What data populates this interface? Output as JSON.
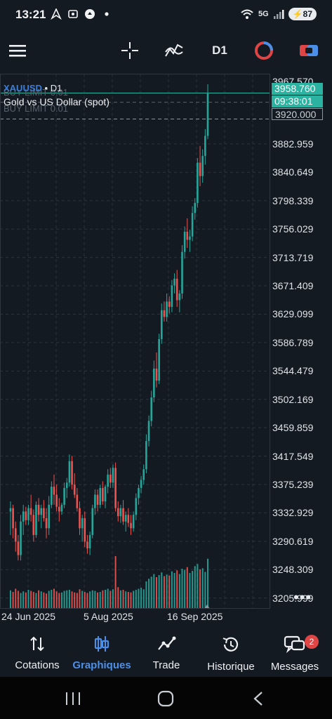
{
  "status_bar": {
    "time": "13:21",
    "network": "5G",
    "battery": "87",
    "left_icons": [
      "navigation-icon",
      "screenshot-icon",
      "app-circle-icon",
      "dot-icon"
    ]
  },
  "toolbar": {
    "menu_icon": "hamburger-icon",
    "crosshair_icon": "crosshair-icon",
    "indicators_icon": "indicators-icon",
    "timeframe": "D1",
    "colors": {
      "accent": "#4b8fe8",
      "brand_red": "#e04545"
    }
  },
  "chart": {
    "symbol": "XAUUSD",
    "symbol_sep": " • ",
    "timeframe": "D1",
    "instrument_name": "Gold vs US Dollar (spot)",
    "order_lines": [
      "BUY LIMIT 0.01",
      "BUY LIMIT 0.01"
    ],
    "bid_tag": "3958.760",
    "countdown_tag": "09:38:01",
    "limit_tag": "3920.000",
    "top_partial_label": "3967.570",
    "more_label": "•••",
    "colors": {
      "up": "#26a69a",
      "down": "#ef5350",
      "grid": "#2c333c",
      "bid_line": "#2bb3a2"
    }
  },
  "chart_data": {
    "type": "candlestick",
    "x_axis_labels": [
      "24 Jun 2025",
      "5 Aug 2025",
      "16 Sep 2025"
    ],
    "y_ticks": [
      "3882.959",
      "3840.649",
      "3798.339",
      "3756.029",
      "3713.719",
      "3671.409",
      "3629.099",
      "3586.789",
      "3544.479",
      "3502.169",
      "3459.859",
      "3417.549",
      "3375.239",
      "3332.929",
      "3290.619",
      "3248.309",
      "3205.999"
    ],
    "ylim": [
      3190,
      3975
    ],
    "grid": true,
    "candles": [
      [
        3335,
        3350,
        3300,
        3340
      ],
      [
        3340,
        3345,
        3295,
        3310
      ],
      [
        3310,
        3320,
        3275,
        3290
      ],
      [
        3290,
        3300,
        3262,
        3270
      ],
      [
        3270,
        3330,
        3262,
        3320
      ],
      [
        3320,
        3345,
        3300,
        3335
      ],
      [
        3335,
        3342,
        3315,
        3322
      ],
      [
        3322,
        3345,
        3315,
        3340
      ],
      [
        3340,
        3360,
        3320,
        3330
      ],
      [
        3330,
        3338,
        3290,
        3300
      ],
      [
        3300,
        3350,
        3296,
        3345
      ],
      [
        3345,
        3355,
        3320,
        3330
      ],
      [
        3330,
        3345,
        3310,
        3340
      ],
      [
        3340,
        3352,
        3320,
        3325
      ],
      [
        3325,
        3340,
        3295,
        3310
      ],
      [
        3310,
        3358,
        3300,
        3345
      ],
      [
        3345,
        3380,
        3340,
        3372
      ],
      [
        3372,
        3390,
        3345,
        3360
      ],
      [
        3360,
        3375,
        3335,
        3342
      ],
      [
        3342,
        3355,
        3320,
        3335
      ],
      [
        3335,
        3348,
        3330,
        3345
      ],
      [
        3345,
        3378,
        3340,
        3370
      ],
      [
        3370,
        3385,
        3355,
        3378
      ],
      [
        3378,
        3420,
        3372,
        3410
      ],
      [
        3410,
        3418,
        3368,
        3375
      ],
      [
        3375,
        3392,
        3355,
        3360
      ],
      [
        3360,
        3370,
        3335,
        3340
      ],
      [
        3340,
        3350,
        3300,
        3310
      ],
      [
        3310,
        3330,
        3290,
        3325
      ],
      [
        3325,
        3335,
        3282,
        3290
      ],
      [
        3290,
        3300,
        3272,
        3280
      ],
      [
        3280,
        3305,
        3270,
        3300
      ],
      [
        3300,
        3345,
        3295,
        3340
      ],
      [
        3340,
        3368,
        3330,
        3360
      ],
      [
        3360,
        3368,
        3335,
        3345
      ],
      [
        3345,
        3375,
        3340,
        3370
      ],
      [
        3370,
        3380,
        3345,
        3350
      ],
      [
        3350,
        3375,
        3340,
        3372
      ],
      [
        3372,
        3398,
        3362,
        3390
      ],
      [
        3390,
        3400,
        3370,
        3378
      ],
      [
        3378,
        3405,
        3370,
        3400
      ],
      [
        3400,
        3408,
        3335,
        3340
      ],
      [
        3340,
        3350,
        3320,
        3328
      ],
      [
        3328,
        3345,
        3318,
        3340
      ],
      [
        3340,
        3352,
        3315,
        3320
      ],
      [
        3320,
        3335,
        3305,
        3330
      ],
      [
        3330,
        3340,
        3312,
        3318
      ],
      [
        3318,
        3330,
        3300,
        3310
      ],
      [
        3310,
        3335,
        3305,
        3330
      ],
      [
        3330,
        3362,
        3322,
        3355
      ],
      [
        3355,
        3375,
        3345,
        3370
      ],
      [
        3370,
        3388,
        3362,
        3382
      ],
      [
        3382,
        3405,
        3375,
        3398
      ],
      [
        3398,
        3450,
        3392,
        3440
      ],
      [
        3440,
        3478,
        3432,
        3470
      ],
      [
        3470,
        3515,
        3462,
        3505
      ],
      [
        3505,
        3560,
        3498,
        3548
      ],
      [
        3548,
        3572,
        3520,
        3530
      ],
      [
        3530,
        3600,
        3525,
        3592
      ],
      [
        3592,
        3645,
        3585,
        3635
      ],
      [
        3635,
        3648,
        3618,
        3625
      ],
      [
        3625,
        3660,
        3618,
        3648
      ],
      [
        3648,
        3656,
        3630,
        3640
      ],
      [
        3640,
        3680,
        3632,
        3672
      ],
      [
        3672,
        3690,
        3660,
        3682
      ],
      [
        3682,
        3695,
        3640,
        3650
      ],
      [
        3650,
        3665,
        3632,
        3660
      ],
      [
        3660,
        3732,
        3652,
        3722
      ],
      [
        3722,
        3760,
        3712,
        3752
      ],
      [
        3752,
        3772,
        3728,
        3740
      ],
      [
        3740,
        3755,
        3722,
        3745
      ],
      [
        3745,
        3790,
        3738,
        3780
      ],
      [
        3780,
        3802,
        3770,
        3795
      ],
      [
        3795,
        3862,
        3788,
        3855
      ],
      [
        3855,
        3880,
        3820,
        3835
      ],
      [
        3835,
        3875,
        3825,
        3865
      ],
      [
        3865,
        3905,
        3852,
        3895
      ],
      [
        3895,
        3972,
        3890,
        3958
      ]
    ],
    "volume": [
      0.35,
      0.32,
      0.38,
      0.34,
      0.3,
      0.33,
      0.31,
      0.36,
      0.34,
      0.32,
      0.3,
      0.35,
      0.33,
      0.31,
      0.29,
      0.34,
      0.36,
      0.38,
      0.33,
      0.3,
      0.31,
      0.34,
      0.35,
      0.36,
      0.33,
      0.31,
      0.3,
      0.37,
      0.34,
      0.32,
      0.3,
      0.33,
      0.35,
      0.34,
      0.31,
      0.32,
      0.35,
      0.36,
      0.38,
      0.34,
      0.37,
      1.0,
      0.41,
      0.35,
      0.36,
      0.33,
      0.32,
      0.31,
      0.34,
      0.36,
      0.38,
      0.4,
      0.37,
      0.52,
      0.57,
      0.61,
      0.66,
      0.6,
      0.64,
      0.69,
      0.62,
      0.65,
      0.63,
      0.71,
      0.68,
      0.73,
      0.66,
      0.76,
      0.74,
      0.79,
      0.68,
      0.72,
      0.81,
      0.85,
      0.75,
      0.77,
      0.7,
      0.95
    ]
  },
  "bottom_nav": {
    "items": [
      {
        "label": "Cotations",
        "icon": "arrows-updown-icon"
      },
      {
        "label": "Graphiques",
        "icon": "candles-icon"
      },
      {
        "label": "Trade",
        "icon": "trade-line-icon"
      },
      {
        "label": "Historique",
        "icon": "history-icon"
      },
      {
        "label": "Messages",
        "icon": "messages-icon"
      }
    ],
    "messages_badge": "2"
  },
  "system_nav": {
    "buttons": [
      "recents-icon",
      "home-icon",
      "back-icon"
    ]
  }
}
